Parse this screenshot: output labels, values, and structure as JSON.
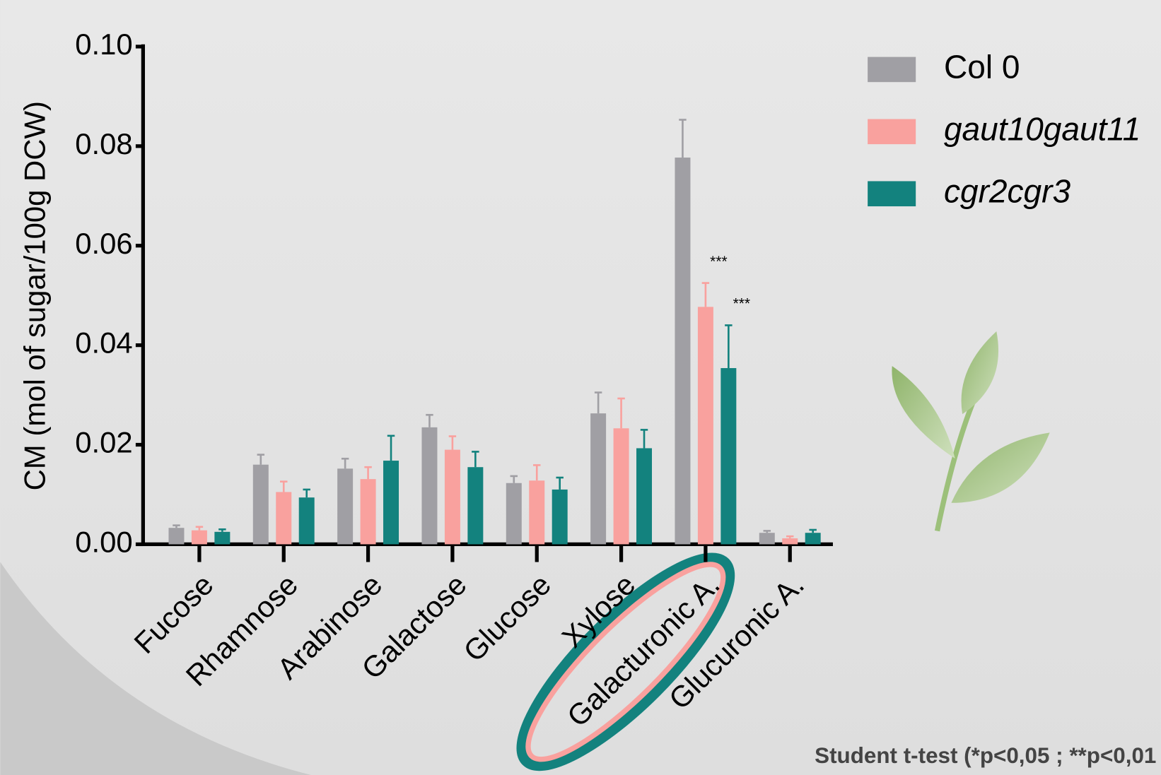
{
  "chart_data": {
    "type": "bar",
    "ylabel": "CM (mol of sugar/100g DCW)",
    "categories": [
      "Fucose",
      "Rhamnose",
      "Arabinose",
      "Galactose",
      "Glucose",
      "Xylose",
      "Galacturonic A.",
      "Glucuronic A."
    ],
    "series": [
      {
        "name": "Col 0",
        "color": "#a09fa4",
        "style": "normal",
        "values": [
          0.0033,
          0.016,
          0.0152,
          0.0235,
          0.0123,
          0.0263,
          0.0777,
          0.0023
        ],
        "errors": [
          0.0005,
          0.002,
          0.002,
          0.0025,
          0.0014,
          0.0042,
          0.0076,
          0.0004
        ]
      },
      {
        "name": "gaut10gaut11",
        "color": "#f9a19e",
        "style": "italic",
        "values": [
          0.0028,
          0.0105,
          0.0131,
          0.019,
          0.0128,
          0.0233,
          0.0477,
          0.0012
        ],
        "errors": [
          0.0007,
          0.0021,
          0.0024,
          0.0027,
          0.0031,
          0.006,
          0.0048,
          0.0004
        ]
      },
      {
        "name": "cgr2cgr3",
        "color": "#13827e",
        "style": "italic",
        "values": [
          0.0025,
          0.0094,
          0.0168,
          0.0155,
          0.011,
          0.0193,
          0.0354,
          0.0023
        ],
        "errors": [
          0.0005,
          0.0016,
          0.005,
          0.0031,
          0.0024,
          0.0037,
          0.0086,
          0.0006
        ]
      }
    ],
    "annotations": [
      {
        "text": "***",
        "series": 1,
        "category": 6
      },
      {
        "text": "***",
        "series": 2,
        "category": 6
      }
    ],
    "ylim": [
      0,
      0.1
    ],
    "yticks": [
      {
        "value": 0,
        "label": "0.00"
      },
      0.02,
      0.04,
      0.06,
      0.08,
      {
        "value": 0.1,
        "label": "0.10"
      }
    ],
    "footnote": "Student t-test (*p<0,05 ; **p<0,01"
  }
}
